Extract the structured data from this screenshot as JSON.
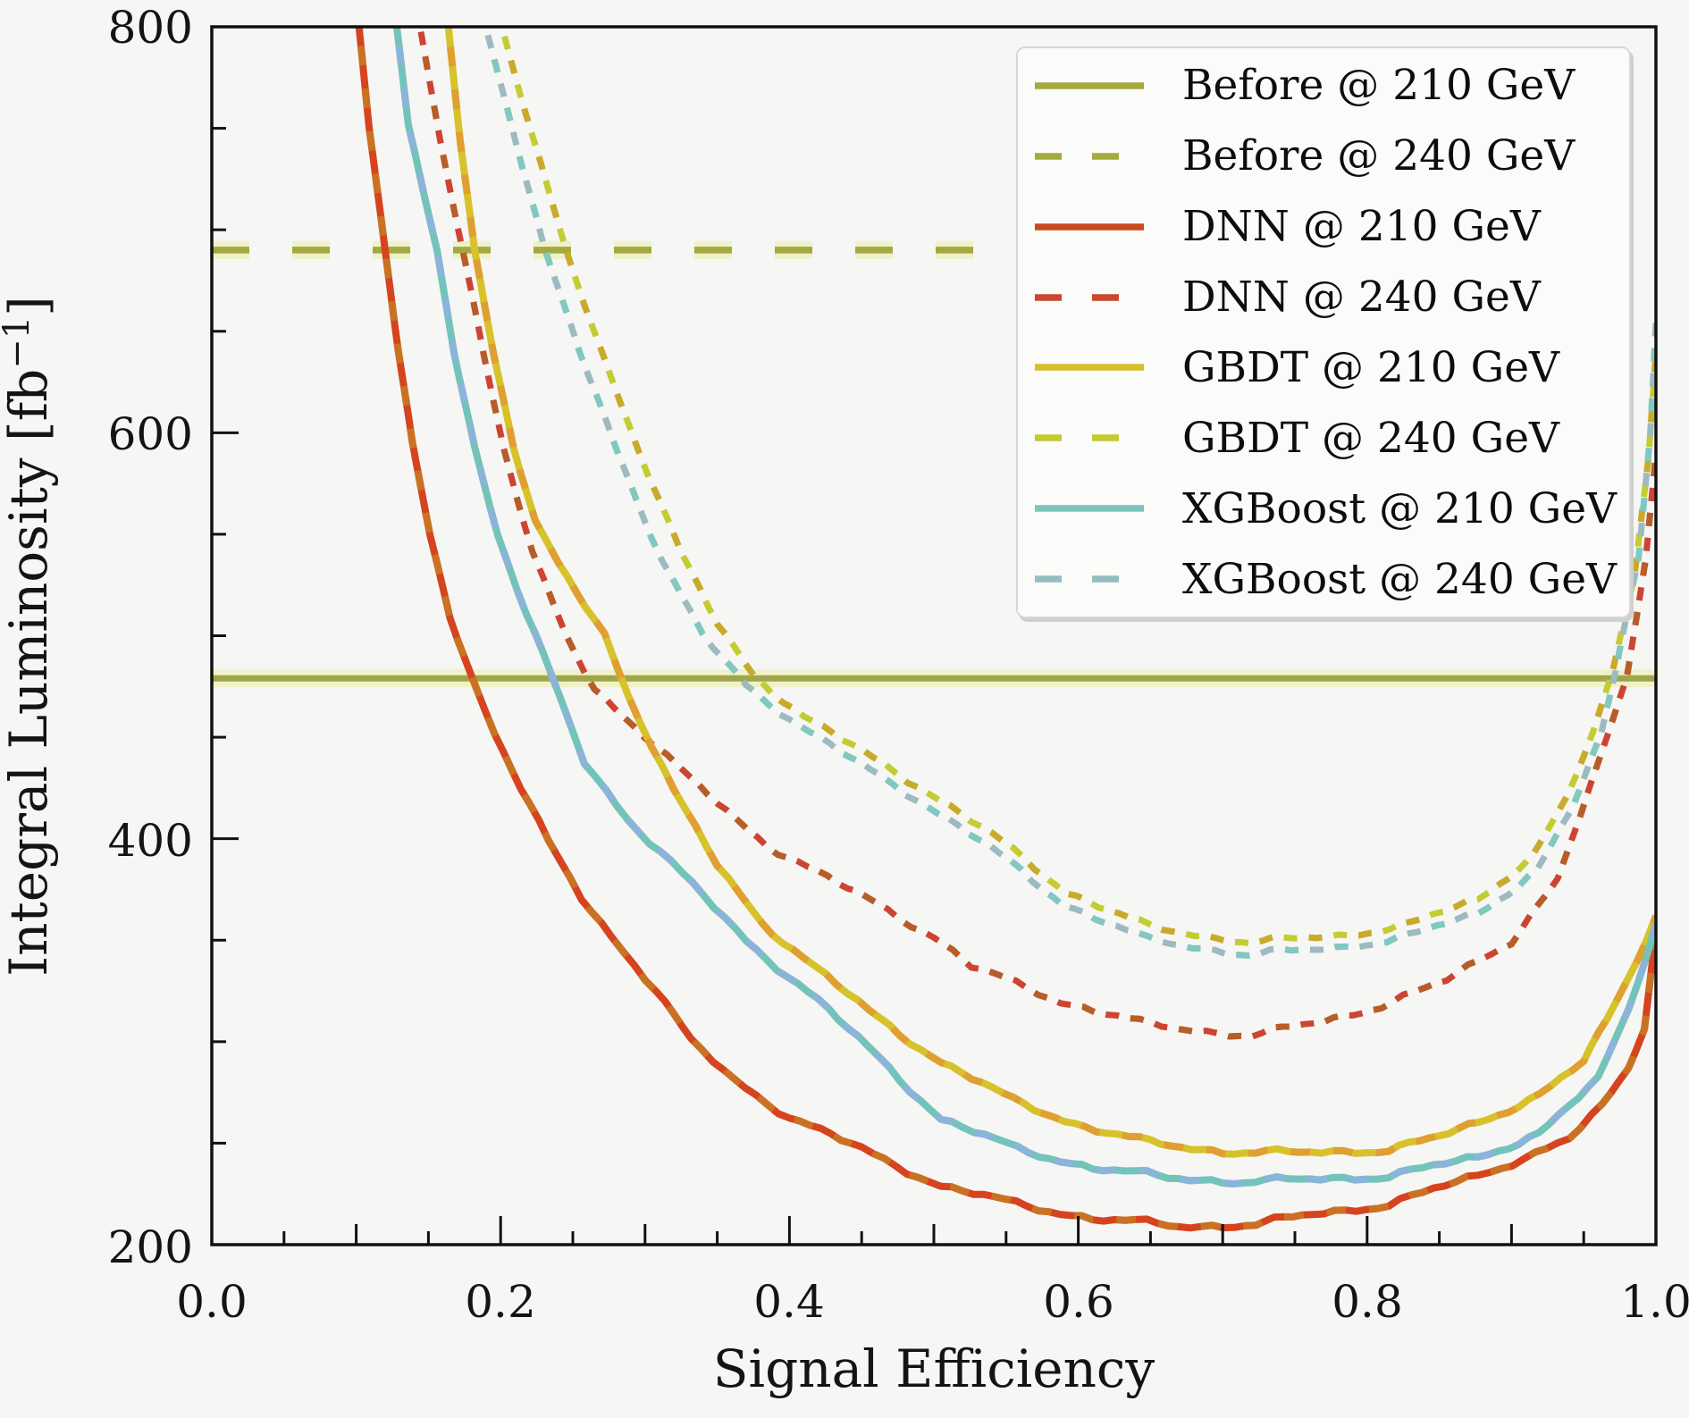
{
  "axes": {
    "xlabel": "Signal Efficiency",
    "ylabel": "Integral Luminosity [fb⁻¹]",
    "ylabel_parts": [
      "Integral Luminosity [fb",
      "−1",
      "]"
    ],
    "x_ticks": [
      "0.0",
      "0.2",
      "0.4",
      "0.6",
      "0.8",
      "1.0"
    ],
    "x_tick_values": [
      0.0,
      0.2,
      0.4,
      0.6,
      0.8,
      1.0
    ],
    "y_ticks_desc": [
      "800",
      "600",
      "400",
      "200"
    ],
    "y_tick_values_desc": [
      800,
      600,
      400,
      200
    ]
  },
  "legend": {
    "entries": [
      {
        "label": "Before @ 210 GeV",
        "color": "#a6a93f",
        "dash": "none"
      },
      {
        "label": "Before @ 240 GeV",
        "color": "#a6a93f",
        "dash": "30 34"
      },
      {
        "label": "DNN @ 210 GeV",
        "color": "#c8491e",
        "dash": "none"
      },
      {
        "label": "DNN @ 240 GeV",
        "color": "#c8492e",
        "dash": "30 34"
      },
      {
        "label": "GBDT @ 210 GeV",
        "color": "#d5bf2b",
        "dash": "none"
      },
      {
        "label": "GBDT @ 240 GeV",
        "color": "#c2cb32",
        "dash": "30 34"
      },
      {
        "label": "XGBoost @ 210 GeV",
        "color": "#7cc4bc",
        "dash": "none"
      },
      {
        "label": "XGBoost @ 240 GeV",
        "color": "#95bcc1",
        "dash": "30 34"
      }
    ]
  },
  "chart_data": {
    "type": "line",
    "title": "",
    "xlabel": "Signal Efficiency",
    "ylabel": "Integral Luminosity [fb-1]",
    "xlim": [
      0.0,
      1.0
    ],
    "ylim": [
      200,
      800
    ],
    "grid": false,
    "legend_position": "upper right",
    "series": [
      {
        "id": "before-210",
        "name": "Before @ 210 GeV",
        "style": "solid",
        "width": 7,
        "color": "#a0a54a",
        "glow": "#eef2c4",
        "jitter": 0,
        "points": [
          [
            0.0,
            479
          ],
          [
            1.0,
            479
          ]
        ]
      },
      {
        "id": "before-240",
        "name": "Before @ 240 GeV",
        "style": "hdash",
        "width": 7.5,
        "color": "#a4a83e",
        "glow": "#eef2c4",
        "jitter": 0,
        "points": [
          [
            0.0,
            690
          ],
          [
            1.0,
            690
          ]
        ]
      },
      {
        "id": "dnn-210",
        "name": "DNN @ 210 GeV",
        "style": "solid",
        "width": 8,
        "color": "#d6431f",
        "color2": "#c97524",
        "jitter": 2.2,
        "points": [
          [
            0.0985,
            845
          ],
          [
            0.102,
            800
          ],
          [
            0.109,
            750
          ],
          [
            0.12,
            690
          ],
          [
            0.129,
            640
          ],
          [
            0.139,
            593
          ],
          [
            0.151,
            550
          ],
          [
            0.165,
            510
          ],
          [
            0.181,
            478
          ],
          [
            0.196,
            452
          ],
          [
            0.214,
            425
          ],
          [
            0.233,
            398
          ],
          [
            0.256,
            371
          ],
          [
            0.277,
            352
          ],
          [
            0.308,
            325
          ],
          [
            0.332,
            300
          ],
          [
            0.362,
            281
          ],
          [
            0.4,
            263
          ],
          [
            0.45,
            247
          ],
          [
            0.505,
            229
          ],
          [
            0.557,
            220
          ],
          [
            0.61,
            213
          ],
          [
            0.67,
            209
          ],
          [
            0.723,
            210
          ],
          [
            0.755,
            214
          ],
          [
            0.815,
            220
          ],
          [
            0.877,
            234
          ],
          [
            0.94,
            252
          ],
          [
            0.963,
            268
          ],
          [
            0.981,
            287
          ],
          [
            0.992,
            308
          ],
          [
            1.0,
            355
          ]
        ]
      },
      {
        "id": "dnn-240",
        "name": "DNN @ 240 GeV",
        "style": "dashed",
        "width": 7,
        "color": "#cc4533",
        "color2": "#b55f2a",
        "jitter": 2.2,
        "points": [
          [
            0.14,
            845
          ],
          [
            0.144,
            800
          ],
          [
            0.158,
            745
          ],
          [
            0.174,
            690
          ],
          [
            0.188,
            640
          ],
          [
            0.202,
            593
          ],
          [
            0.222,
            540
          ],
          [
            0.245,
            500
          ],
          [
            0.265,
            474
          ],
          [
            0.3,
            451
          ],
          [
            0.33,
            430
          ],
          [
            0.364,
            409
          ],
          [
            0.385,
            397
          ],
          [
            0.42,
            383
          ],
          [
            0.46,
            368
          ],
          [
            0.5,
            352
          ],
          [
            0.526,
            337
          ],
          [
            0.588,
            320
          ],
          [
            0.65,
            308
          ],
          [
            0.72,
            303
          ],
          [
            0.77,
            310
          ],
          [
            0.81,
            318
          ],
          [
            0.855,
            330
          ],
          [
            0.9,
            350
          ],
          [
            0.932,
            380
          ],
          [
            0.962,
            440
          ],
          [
            0.98,
            480
          ],
          [
            0.993,
            540
          ],
          [
            1.0,
            590
          ]
        ]
      },
      {
        "id": "gbdt-210",
        "name": "GBDT @ 210 GeV",
        "style": "solid",
        "width": 8,
        "color": "#d7c22c",
        "color2": "#df9d32",
        "jitter": 2.2,
        "points": [
          [
            0.159,
            845
          ],
          [
            0.164,
            800
          ],
          [
            0.172,
            745
          ],
          [
            0.182,
            690
          ],
          [
            0.195,
            640
          ],
          [
            0.209,
            593
          ],
          [
            0.224,
            555
          ],
          [
            0.24,
            535
          ],
          [
            0.272,
            501
          ],
          [
            0.289,
            470
          ],
          [
            0.32,
            423
          ],
          [
            0.35,
            387
          ],
          [
            0.381,
            359
          ],
          [
            0.41,
            341
          ],
          [
            0.455,
            315
          ],
          [
            0.505,
            290
          ],
          [
            0.555,
            271
          ],
          [
            0.605,
            258
          ],
          [
            0.65,
            250
          ],
          [
            0.7,
            246
          ],
          [
            0.753,
            245
          ],
          [
            0.815,
            247
          ],
          [
            0.85,
            253
          ],
          [
            0.877,
            260
          ],
          [
            0.919,
            274
          ],
          [
            0.95,
            290
          ],
          [
            0.966,
            310
          ],
          [
            0.98,
            330
          ],
          [
            1.0,
            362
          ]
        ]
      },
      {
        "id": "gbdt-240",
        "name": "GBDT @ 240 GeV",
        "style": "dashed",
        "width": 7,
        "color": "#c3cc33",
        "color2": "#c9a82c",
        "jitter": 2.2,
        "points": [
          [
            0.196,
            845
          ],
          [
            0.201,
            800
          ],
          [
            0.222,
            745
          ],
          [
            0.245,
            690
          ],
          [
            0.27,
            640
          ],
          [
            0.295,
            593
          ],
          [
            0.325,
            540
          ],
          [
            0.35,
            506
          ],
          [
            0.375,
            481
          ],
          [
            0.41,
            460
          ],
          [
            0.45,
            443
          ],
          [
            0.49,
            426
          ],
          [
            0.54,
            402
          ],
          [
            0.592,
            374
          ],
          [
            0.65,
            356
          ],
          [
            0.72,
            349
          ],
          [
            0.78,
            352
          ],
          [
            0.83,
            358
          ],
          [
            0.877,
            370
          ],
          [
            0.915,
            392
          ],
          [
            0.938,
            420
          ],
          [
            0.957,
            452
          ],
          [
            0.97,
            482
          ],
          [
            0.985,
            530
          ],
          [
            0.995,
            590
          ],
          [
            1.0,
            640
          ]
        ]
      },
      {
        "id": "xgb-210",
        "name": "XGBoost @ 210 GeV",
        "style": "solid",
        "width": 8,
        "color": "#73c3bb",
        "color2": "#8cb3da",
        "jitter": 2.2,
        "points": [
          [
            0.1235,
            845
          ],
          [
            0.128,
            800
          ],
          [
            0.136,
            750
          ],
          [
            0.156,
            690
          ],
          [
            0.168,
            640
          ],
          [
            0.182,
            593
          ],
          [
            0.198,
            550
          ],
          [
            0.218,
            510
          ],
          [
            0.235,
            480
          ],
          [
            0.258,
            438
          ],
          [
            0.288,
            410
          ],
          [
            0.318,
            388
          ],
          [
            0.37,
            350
          ],
          [
            0.42,
            320
          ],
          [
            0.462,
            292
          ],
          [
            0.505,
            262
          ],
          [
            0.558,
            247
          ],
          [
            0.61,
            238
          ],
          [
            0.662,
            233
          ],
          [
            0.715,
            231
          ],
          [
            0.76,
            232
          ],
          [
            0.815,
            234
          ],
          [
            0.877,
            243
          ],
          [
            0.919,
            255
          ],
          [
            0.96,
            281
          ],
          [
            0.981,
            316
          ],
          [
            1.0,
            358
          ]
        ]
      },
      {
        "id": "xgb-240",
        "name": "XGBoost @ 240 GeV",
        "style": "dashed",
        "width": 7,
        "color": "#9dbac1",
        "color2": "#7ec8c0",
        "jitter": 2.2,
        "points": [
          [
            0.185,
            845
          ],
          [
            0.19,
            800
          ],
          [
            0.21,
            745
          ],
          [
            0.23,
            690
          ],
          [
            0.255,
            640
          ],
          [
            0.28,
            593
          ],
          [
            0.312,
            536
          ],
          [
            0.34,
            500
          ],
          [
            0.37,
            476
          ],
          [
            0.408,
            455
          ],
          [
            0.448,
            437
          ],
          [
            0.488,
            420
          ],
          [
            0.538,
            396
          ],
          [
            0.59,
            368
          ],
          [
            0.648,
            350
          ],
          [
            0.718,
            343
          ],
          [
            0.778,
            346
          ],
          [
            0.828,
            352
          ],
          [
            0.877,
            363
          ],
          [
            0.918,
            385
          ],
          [
            0.942,
            415
          ],
          [
            0.962,
            450
          ],
          [
            0.972,
            482
          ],
          [
            0.988,
            540
          ],
          [
            0.996,
            600
          ],
          [
            1.0,
            655
          ]
        ]
      }
    ]
  }
}
